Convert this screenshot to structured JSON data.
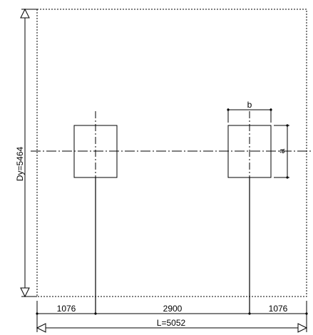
{
  "dimensions": {
    "overall_width": "L=5052",
    "overall_height": "Dy=5464",
    "left_edge_distance": "1076",
    "center_spacing": "2900",
    "right_edge_distance": "1076",
    "column_width": "b",
    "column_depth": "a"
  }
}
